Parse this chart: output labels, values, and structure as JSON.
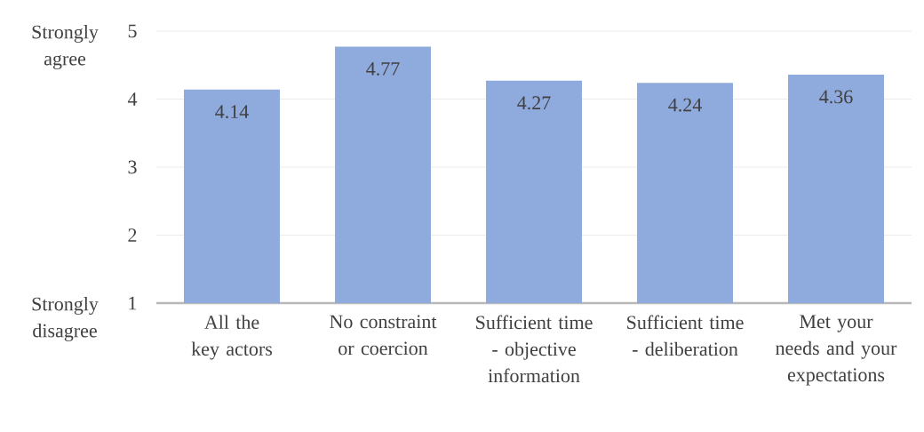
{
  "chart_data": {
    "type": "bar",
    "categories": [
      "All the key actors",
      "No constraint or coercion",
      "Sufficient time - objective information",
      "Sufficient time - deliberation",
      "Met your needs and your expectations"
    ],
    "values": [
      4.14,
      4.77,
      4.27,
      4.24,
      4.36
    ],
    "color": "#8faadc",
    "ylim": [
      1,
      5
    ],
    "yticks": [
      1,
      2,
      3,
      4,
      5
    ],
    "grid": "y",
    "data_labels": true,
    "annotations": [
      "Strongly agree",
      "Strongly disagree"
    ]
  }
}
